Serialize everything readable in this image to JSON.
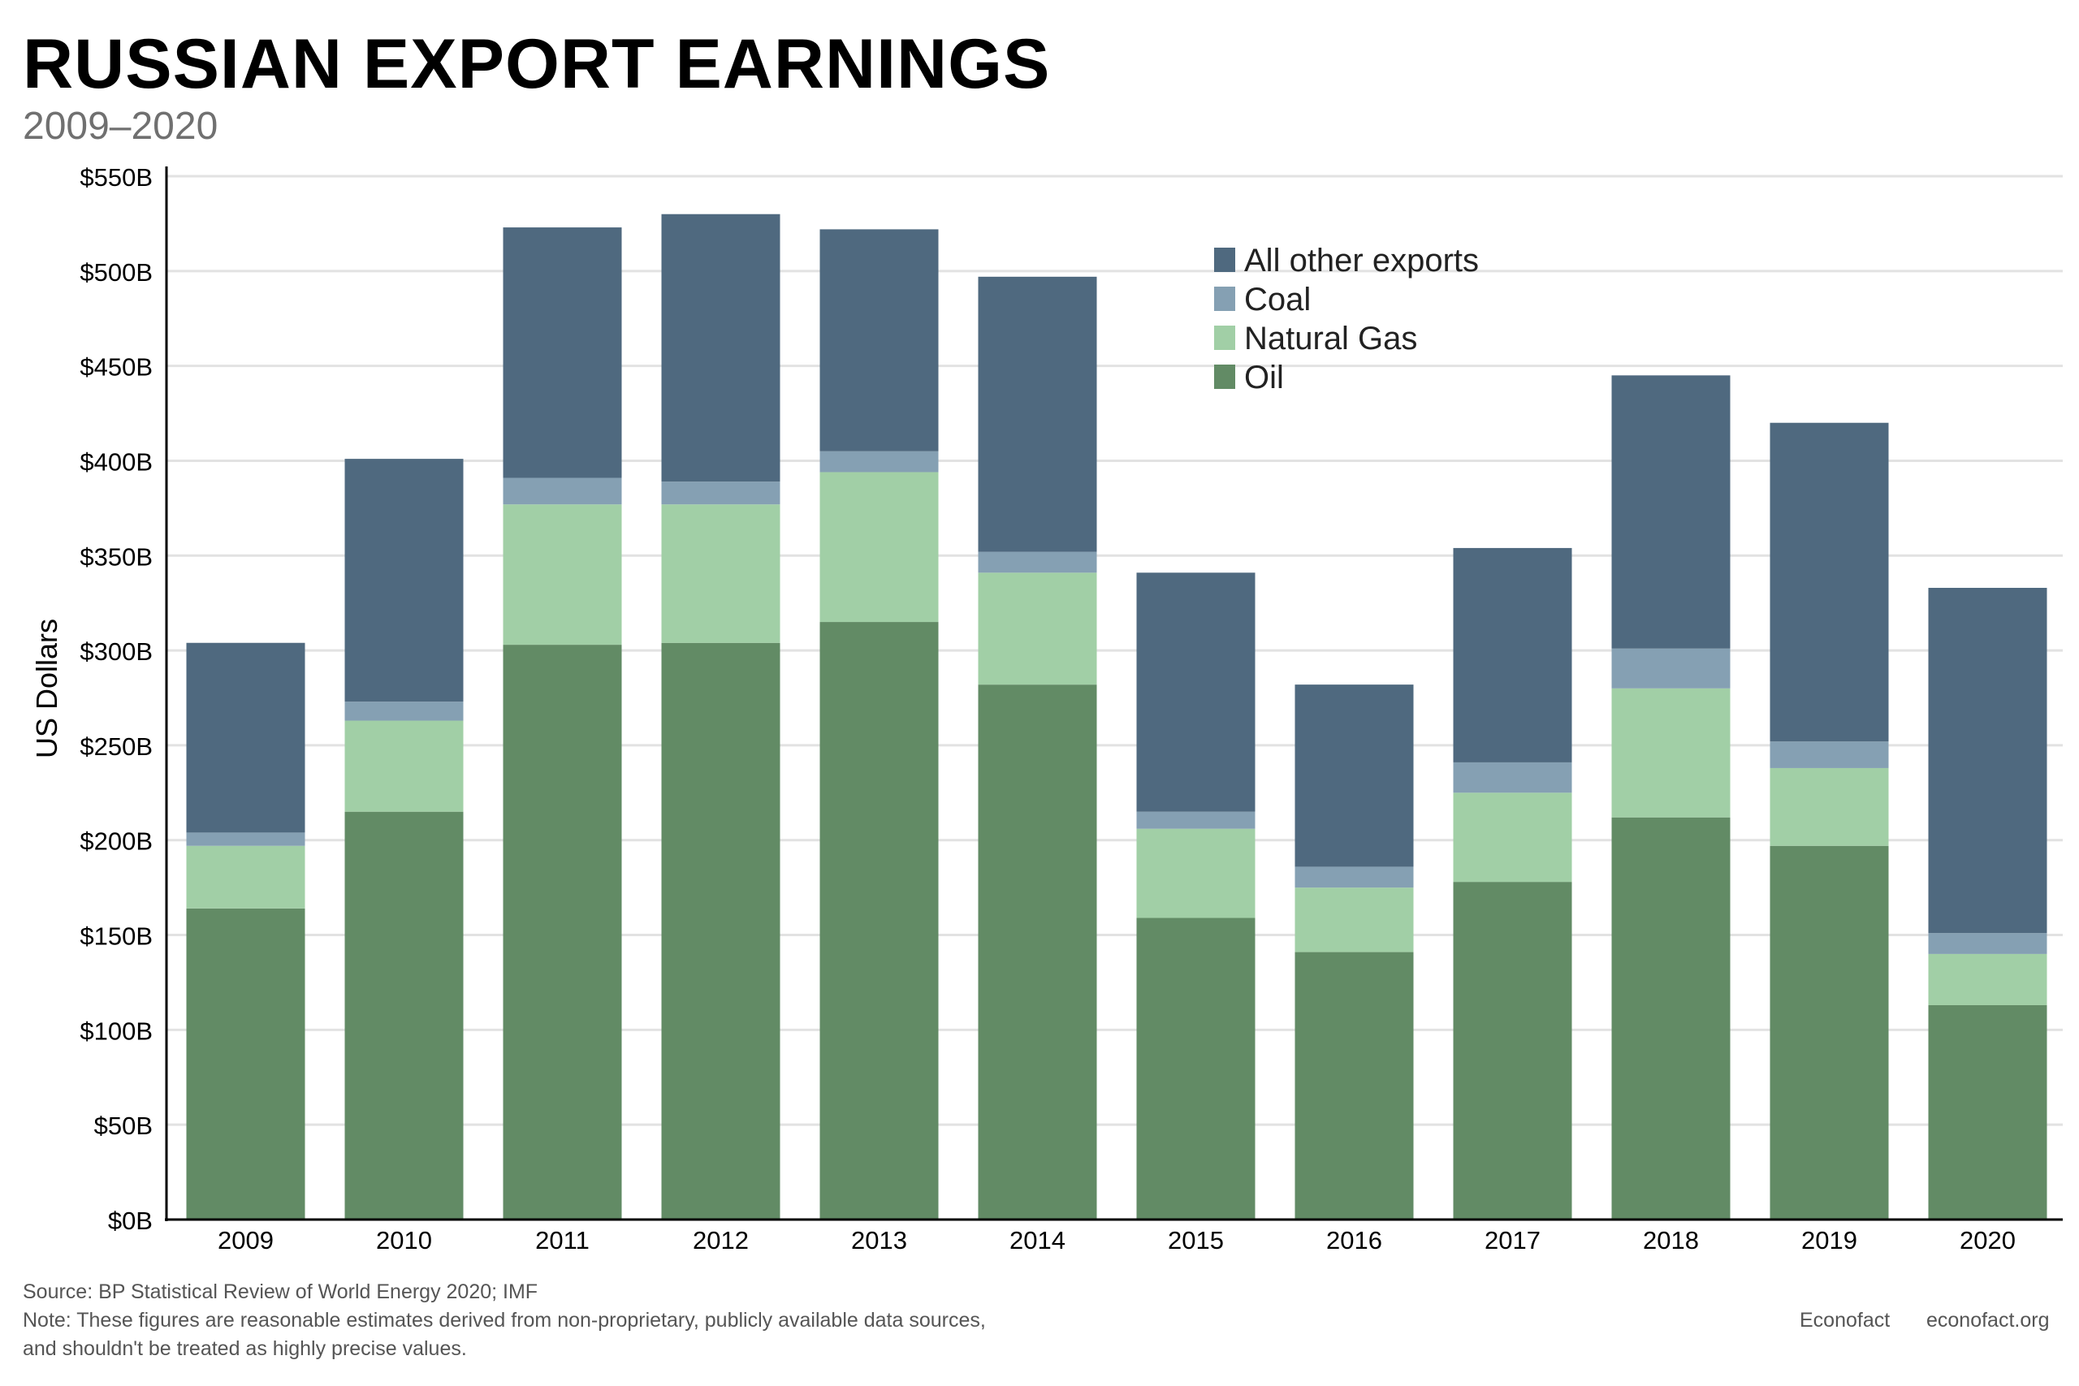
{
  "title": "RUSSIAN EXPORT EARNINGS",
  "subtitle": "2009–2020",
  "footer": {
    "source": "Source: BP Statistical Review of World Energy 2020; IMF",
    "note": "Note: These figures are reasonable estimates derived from non-proprietary, publicly available data sources, and shouldn't be treated as highly precise values.",
    "brand": "Econofact",
    "site": "econofact.org"
  },
  "chart_data": {
    "type": "bar",
    "stacked": true,
    "title": "RUSSIAN EXPORT EARNINGS",
    "subtitle": "2009–2020",
    "xlabel": "",
    "ylabel": "US Dollars",
    "ylim": [
      0,
      550
    ],
    "yticks": [
      0,
      50,
      100,
      150,
      200,
      250,
      300,
      350,
      400,
      450,
      500,
      550
    ],
    "ytick_labels": [
      "$0B",
      "$50B",
      "$100B",
      "$150B",
      "$200B",
      "$250B",
      "$300B",
      "$350B",
      "$400B",
      "$450B",
      "$500B",
      "$550B"
    ],
    "grid": true,
    "legend_position": "top-right",
    "categories": [
      "2009",
      "2010",
      "2011",
      "2012",
      "2013",
      "2014",
      "2015",
      "2016",
      "2017",
      "2018",
      "2019",
      "2020"
    ],
    "series": [
      {
        "name": "Oil",
        "color": "#628b65",
        "values": [
          164,
          215,
          303,
          304,
          315,
          282,
          159,
          141,
          178,
          212,
          197,
          113
        ]
      },
      {
        "name": "Natural Gas",
        "color": "#a1cfa6",
        "values": [
          33,
          48,
          74,
          73,
          79,
          59,
          47,
          34,
          47,
          68,
          41,
          27
        ]
      },
      {
        "name": "Coal",
        "color": "#85a0b3",
        "values": [
          7,
          10,
          14,
          12,
          11,
          11,
          9,
          11,
          16,
          21,
          14,
          11
        ]
      },
      {
        "name": "All other exports",
        "color": "#4f697f",
        "values": [
          100,
          128,
          132,
          141,
          117,
          145,
          126,
          96,
          113,
          144,
          168,
          182
        ]
      }
    ],
    "legend_order": [
      "All other exports",
      "Coal",
      "Natural Gas",
      "Oil"
    ]
  }
}
